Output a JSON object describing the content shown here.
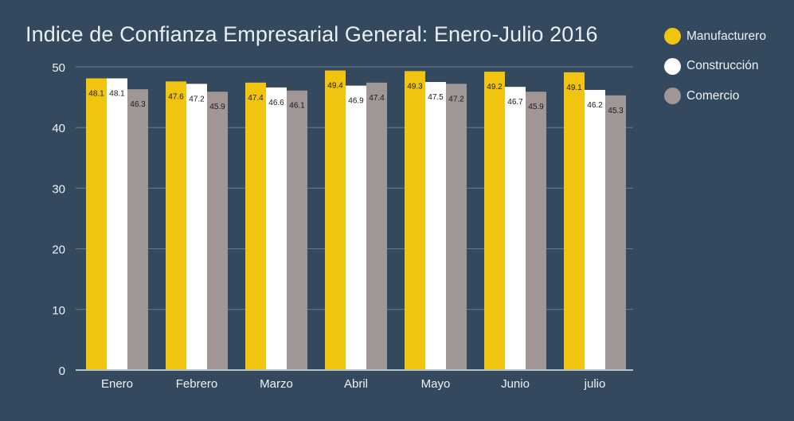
{
  "chart_data": {
    "type": "bar",
    "title": "Indice de Confianza Empresarial General: Enero-Julio 2016",
    "categories": [
      "Enero",
      "Febrero",
      "Marzo",
      "Abril",
      "Mayo",
      "Junio",
      "julio"
    ],
    "series": [
      {
        "name": "Manufacturero",
        "color": "#f1c40f",
        "values": [
          48.1,
          47.6,
          47.4,
          49.4,
          49.3,
          49.2,
          49.1
        ]
      },
      {
        "name": "Construcción",
        "color": "#ffffff",
        "values": [
          48.1,
          47.2,
          46.6,
          46.9,
          47.5,
          46.7,
          46.2
        ]
      },
      {
        "name": "Comercio",
        "color": "#a19696",
        "values": [
          46.3,
          45.9,
          46.1,
          47.4,
          47.2,
          45.9,
          45.3
        ]
      }
    ],
    "ylim": [
      0,
      50
    ],
    "yticks": [
      0,
      10,
      20,
      30,
      40,
      50
    ],
    "grid": true,
    "legend_position": "top-right",
    "xlabel": "",
    "ylabel": "",
    "colors": {
      "background": "#34495e",
      "grid": "#6b7c8d",
      "axis": "#b8c2cc",
      "text": "#eef2f5",
      "value_label": "#1a1a1a"
    }
  }
}
